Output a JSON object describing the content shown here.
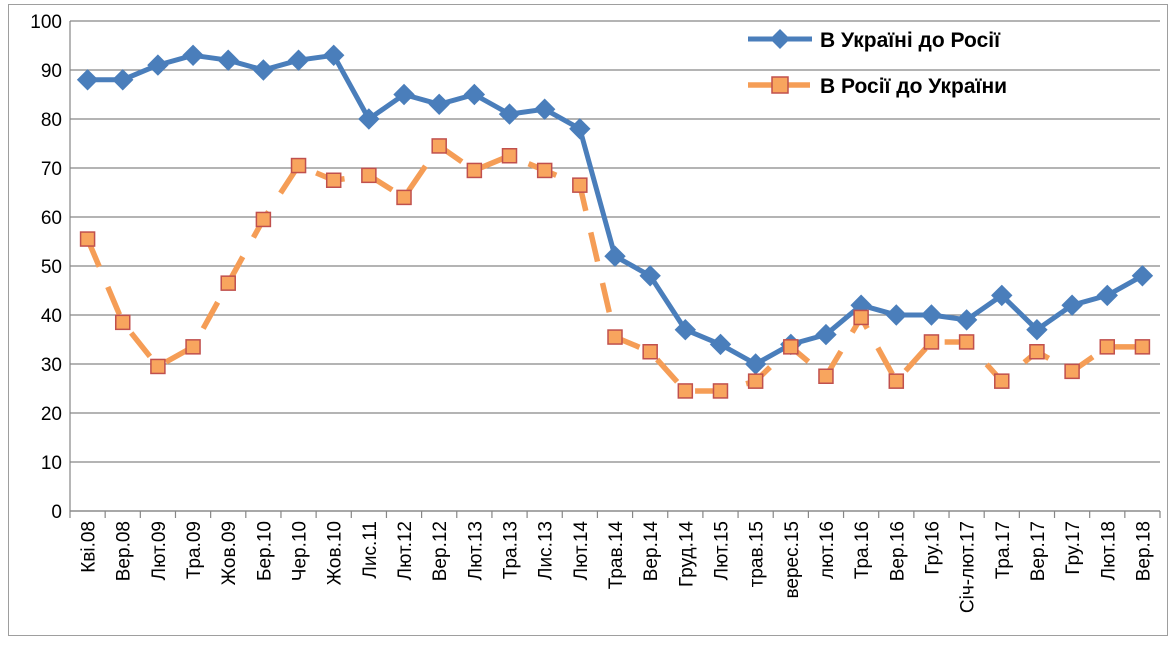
{
  "chart_data": {
    "type": "line",
    "title": "",
    "xlabel": "",
    "ylabel": "",
    "ylim": [
      0,
      100
    ],
    "yticks": [
      0,
      10,
      20,
      30,
      40,
      50,
      60,
      70,
      80,
      90,
      100
    ],
    "grid": true,
    "legend_position": "top-right",
    "categories": [
      "Кві.08",
      "Вер.08",
      "Лют.09",
      "Тра.09",
      "Жов.09",
      "Бер.10",
      "Чер.10",
      "Жов.10",
      "Лис.11",
      "Лют.12",
      "Вер.12",
      "Лют.13",
      "Тра.13",
      "Лис.13",
      "Лют.14",
      "Трав.14",
      "Вер.14",
      "Груд.14",
      "Лют.15",
      "трав.15",
      "верес.15",
      "лют.16",
      "Тра.16",
      "Вер.16",
      "Гру.16",
      "Січ-лют.17",
      "Тра.17",
      "Вер.17",
      "Гру.17",
      "Лют.18",
      "Вер.18"
    ],
    "series": [
      {
        "name": "В Україні до Росії",
        "color": "#4a7ebb",
        "marker": "diamond",
        "line_style": "solid",
        "values": [
          88,
          88,
          91,
          93,
          92,
          90,
          92,
          93,
          80,
          85,
          83,
          85,
          81,
          82,
          78,
          52,
          48,
          37,
          34,
          30,
          34,
          36,
          42,
          40,
          40,
          39,
          44,
          37,
          42,
          44,
          48
        ]
      },
      {
        "name": "В Росії до України",
        "color": "#f59d56",
        "marker_fill": "#f8a55e",
        "marker_stroke": "#c0504d",
        "marker": "square",
        "line_style": "dashed",
        "values": [
          55.5,
          38.5,
          29.5,
          33.5,
          46.5,
          59.5,
          70.5,
          67.5,
          68.5,
          64,
          74.5,
          69.5,
          72.5,
          69.5,
          66.5,
          35.5,
          32.5,
          24.5,
          24.5,
          26.5,
          33.5,
          27.5,
          39.5,
          26.5,
          34.5,
          34.5,
          26.5,
          32.5,
          28.5,
          33.5,
          33.5
        ]
      }
    ]
  }
}
